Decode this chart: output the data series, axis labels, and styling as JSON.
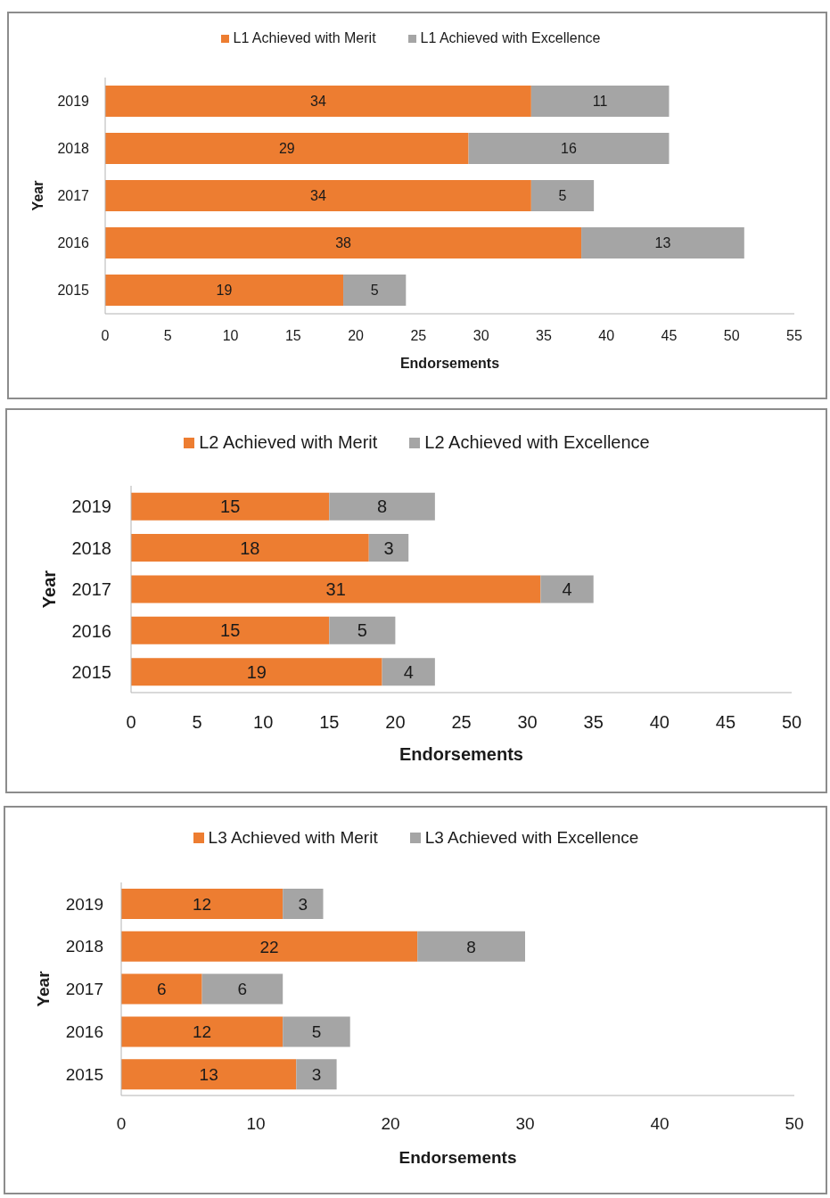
{
  "chart_data": [
    {
      "type": "bar",
      "orientation": "horizontal",
      "stacked": true,
      "categories": [
        "2019",
        "2018",
        "2017",
        "2016",
        "2015"
      ],
      "series": [
        {
          "name": "L1 Achieved with Merit",
          "color": "#ed7d31",
          "values": [
            34,
            29,
            34,
            38,
            19
          ]
        },
        {
          "name": "L1 Achieved with Excellence",
          "color": "#a5a5a5",
          "values": [
            11,
            16,
            5,
            13,
            5
          ]
        }
      ],
      "xlim": [
        0,
        55
      ],
      "xticks": [
        0,
        5,
        10,
        15,
        20,
        25,
        30,
        35,
        40,
        45,
        50,
        55
      ],
      "xlabel": "Endorsements",
      "ylabel": "Year",
      "legend": "top",
      "data_labels": true
    },
    {
      "type": "bar",
      "orientation": "horizontal",
      "stacked": true,
      "categories": [
        "2019",
        "2018",
        "2017",
        "2016",
        "2015"
      ],
      "series": [
        {
          "name": "L2 Achieved with Merit",
          "color": "#ed7d31",
          "values": [
            15,
            18,
            31,
            15,
            19
          ]
        },
        {
          "name": "L2 Achieved with Excellence",
          "color": "#a5a5a5",
          "values": [
            8,
            3,
            4,
            5,
            4
          ]
        }
      ],
      "xlim": [
        0,
        50
      ],
      "xticks": [
        0,
        5,
        10,
        15,
        20,
        25,
        30,
        35,
        40,
        45,
        50
      ],
      "xlabel": "Endorsements",
      "ylabel": "Year",
      "legend": "top",
      "data_labels": true
    },
    {
      "type": "bar",
      "orientation": "horizontal",
      "stacked": true,
      "categories": [
        "2019",
        "2018",
        "2017",
        "2016",
        "2015"
      ],
      "series": [
        {
          "name": "L3 Achieved with Merit",
          "color": "#ed7d31",
          "values": [
            12,
            22,
            6,
            12,
            13
          ]
        },
        {
          "name": "L3 Achieved with Excellence",
          "color": "#a5a5a5",
          "values": [
            3,
            8,
            6,
            5,
            3
          ]
        }
      ],
      "xlim": [
        0,
        50
      ],
      "xticks": [
        0,
        10,
        20,
        30,
        40,
        50
      ],
      "xlabel": "Endorsements",
      "ylabel": "Year",
      "legend": "top",
      "data_labels": true
    }
  ]
}
